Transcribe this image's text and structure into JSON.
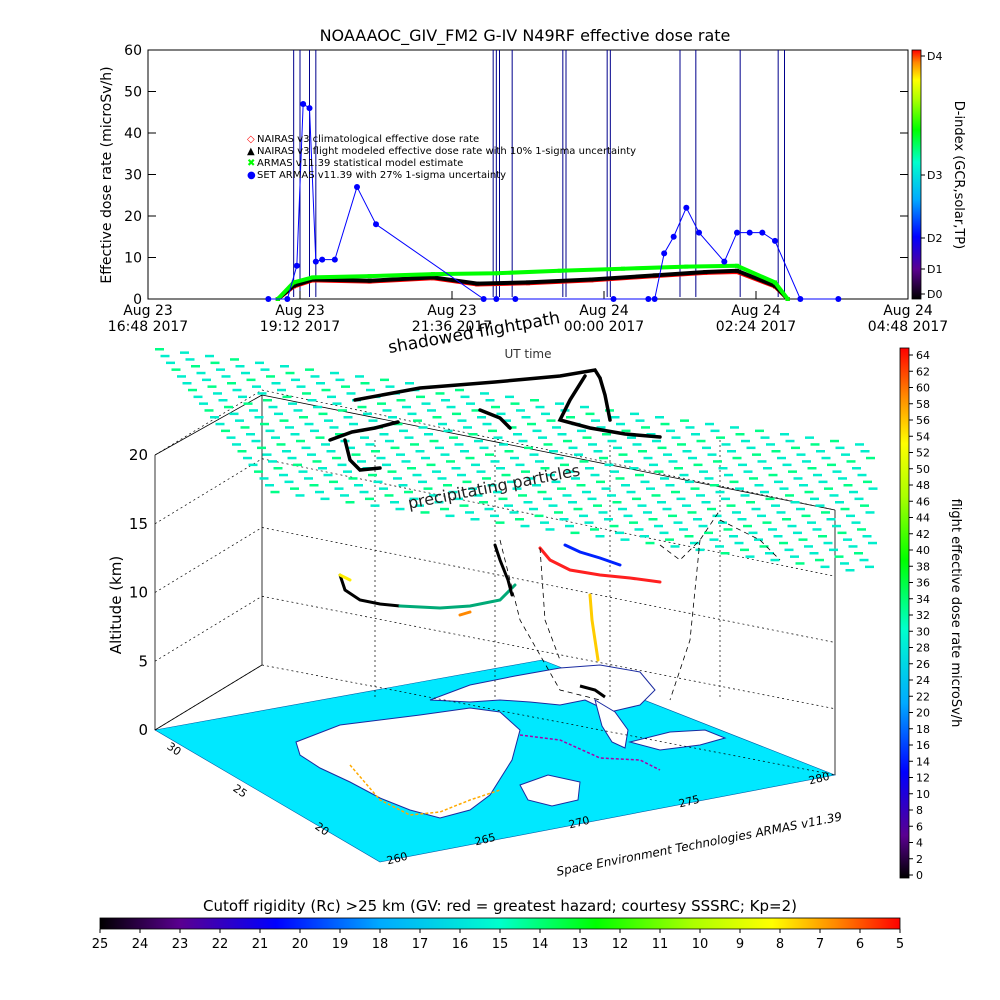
{
  "chart_data": [
    {
      "type": "line",
      "title": "NOAAAOC_GIV_FM2  G-IV    N49RF  effective dose rate",
      "xlabel": "UT time",
      "ylabel": "Effective dose rate (microSv/h)",
      "ylim": [
        0,
        60
      ],
      "yticks": [
        0,
        10,
        20,
        30,
        40,
        50,
        60
      ],
      "xticks": [
        {
          "day": "Aug 23",
          "time": "16:48 2017"
        },
        {
          "day": "Aug 23",
          "time": "19:12 2017"
        },
        {
          "day": "Aug 23",
          "time": "21:36 2017"
        },
        {
          "day": "Aug 24",
          "time": "00:00 2017"
        },
        {
          "day": "Aug 24",
          "time": "02:24 2017"
        },
        {
          "day": "Aug 24",
          "time": "04:48 2017"
        }
      ],
      "x_unit": "hours after Aug 23 16:48 UT",
      "xlim": [
        0,
        12
      ],
      "legend_position": "upper-left",
      "legend": [
        {
          "symbol": "◇",
          "color": "#ff0000",
          "label": "NAIRAS v3 climatological effective dose rate"
        },
        {
          "symbol": "▲",
          "color": "#000000",
          "label": "NAIRAS v3 flight modeled effective dose rate with 10% 1-sigma uncertainty"
        },
        {
          "symbol": "✖",
          "color": "#00ff00",
          "label": "ARMAS v11.39 statistical model estimate"
        },
        {
          "symbol": "●",
          "color": "#0000ff",
          "label": "SET ARMAS v11.39 with 27% 1-sigma uncertainty"
        }
      ],
      "series": [
        {
          "name": "NAIRAS v3 climatological effective dose rate",
          "color": "#ff0000",
          "x": [
            2.05,
            2.3,
            2.6,
            3.5,
            4.5,
            5.2,
            6.0,
            7.0,
            8.0,
            8.8,
            9.3,
            9.9,
            10.1
          ],
          "y": [
            0,
            3,
            4.5,
            4.2,
            5.0,
            3.5,
            3.8,
            4.5,
            5.5,
            6.3,
            6.5,
            3,
            0
          ]
        },
        {
          "name": "NAIRAS v3 flight modeled effective dose rate with 10% 1-sigma uncertainty",
          "color": "#000000",
          "x": [
            2.05,
            2.3,
            2.6,
            3.5,
            4.5,
            5.2,
            6.0,
            7.0,
            8.0,
            8.8,
            9.3,
            9.9,
            10.1
          ],
          "y": [
            0,
            3.2,
            4.7,
            4.4,
            5.2,
            3.7,
            4.0,
            4.7,
            5.7,
            6.5,
            6.8,
            3.2,
            0
          ]
        },
        {
          "name": "ARMAS v11.39 statistical model estimate",
          "color": "#00ff00",
          "x": [
            2.05,
            2.3,
            2.6,
            3.5,
            4.5,
            5.5,
            6.5,
            7.5,
            8.5,
            9.3,
            9.9,
            10.1
          ],
          "y": [
            0,
            4,
            5.2,
            5.5,
            6.0,
            6.2,
            6.8,
            7.3,
            7.8,
            8.0,
            4,
            0
          ]
        },
        {
          "name": "SET ARMAS v11.39 with 27% 1-sigma uncertainty",
          "color": "#0000ff",
          "x": [
            1.9,
            2.2,
            2.35,
            2.45,
            2.55,
            2.65,
            2.75,
            2.95,
            3.3,
            3.6,
            5.3,
            5.5,
            5.8,
            7.35,
            7.9,
            8.0,
            8.15,
            8.3,
            8.5,
            8.7,
            9.1,
            9.3,
            9.5,
            9.7,
            9.9,
            10.3,
            10.9
          ],
          "y": [
            0,
            0,
            8,
            47,
            46,
            9,
            9.5,
            9.5,
            27,
            18,
            0,
            0,
            0,
            0,
            0,
            0,
            11,
            15,
            22,
            16,
            9,
            16,
            16,
            16,
            14,
            0,
            0
          ]
        }
      ],
      "right_axis": {
        "label": "D-index (GCR,solar,TP)",
        "ticks": [
          "D0",
          "D1",
          "D2",
          "D3",
          "D4"
        ]
      }
    },
    {
      "type": "scatter",
      "title": "",
      "xlabel": "",
      "ylabel": "Altitude (km)",
      "zticks": [
        0,
        5,
        10,
        15,
        20
      ],
      "longitude_ticks": [
        "260",
        "265",
        "270",
        "275",
        "280"
      ],
      "latitude_ticks": [
        "20",
        "25",
        "30"
      ],
      "annotations": [
        "shadowed flightpath",
        "precipitating particles",
        "Space Environment Technologies ARMAS v11.39"
      ],
      "colorbar": {
        "label": "flight effective dose rate microSv/h",
        "min": 0,
        "max": 64,
        "step": 2
      },
      "horizontal_colorbar": {
        "label": "Cutoff rigidity (Rc) >25 km (GV: red = greatest hazard; courtesy SSSRC; Kp=2)",
        "ticks": [
          "25",
          "24",
          "23",
          "22",
          "21",
          "20",
          "19",
          "18",
          "17",
          "16",
          "15",
          "14",
          "13",
          "12",
          "11",
          "10",
          "9",
          "8",
          "7",
          "6",
          "5"
        ]
      }
    }
  ],
  "colors": {
    "background": "#ffffff",
    "axis": "#000000",
    "flight_lines": "#00008b",
    "ocean": "#00e8ff",
    "land": "#ffffff"
  }
}
